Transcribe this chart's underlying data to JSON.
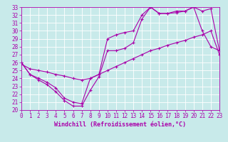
{
  "xlabel": "Windchill (Refroidissement éolien,°C)",
  "bg_color": "#c8eaea",
  "grid_color": "#ffffff",
  "line_color": "#aa00aa",
  "hours": [
    0,
    1,
    2,
    3,
    4,
    5,
    6,
    7,
    8,
    9,
    10,
    11,
    12,
    13,
    14,
    15,
    16,
    17,
    18,
    19,
    20,
    21,
    22,
    23
  ],
  "line1": [
    26.0,
    24.5,
    23.8,
    23.2,
    22.3,
    21.2,
    20.5,
    20.5,
    22.5,
    24.2,
    27.5,
    27.5,
    27.8,
    28.5,
    31.5,
    33.0,
    32.2,
    32.2,
    32.3,
    32.5,
    33.0,
    30.0,
    28.0,
    27.5
  ],
  "line2": [
    26.0,
    24.5,
    24.0,
    23.5,
    22.8,
    21.5,
    21.0,
    20.8,
    24.0,
    24.5,
    29.0,
    29.5,
    29.8,
    30.0,
    32.0,
    33.0,
    32.2,
    32.2,
    32.5,
    32.5,
    33.0,
    32.5,
    32.8,
    27.5
  ],
  "line3": [
    25.8,
    25.2,
    25.0,
    24.8,
    24.5,
    24.3,
    24.0,
    23.8,
    24.0,
    24.5,
    25.0,
    25.5,
    26.0,
    26.5,
    27.0,
    27.5,
    27.8,
    28.2,
    28.5,
    28.8,
    29.2,
    29.5,
    30.0,
    27.0
  ],
  "ylim": [
    20,
    33
  ],
  "xlim": [
    0,
    23
  ],
  "yticks": [
    20,
    21,
    22,
    23,
    24,
    25,
    26,
    27,
    28,
    29,
    30,
    31,
    32,
    33
  ],
  "xticks": [
    0,
    1,
    2,
    3,
    4,
    5,
    6,
    7,
    8,
    9,
    10,
    11,
    12,
    13,
    14,
    15,
    16,
    17,
    18,
    19,
    20,
    21,
    22,
    23
  ],
  "marker": "+",
  "marker_size": 3,
  "line_width": 0.8,
  "font_size": 6,
  "tick_font_size": 5.5
}
